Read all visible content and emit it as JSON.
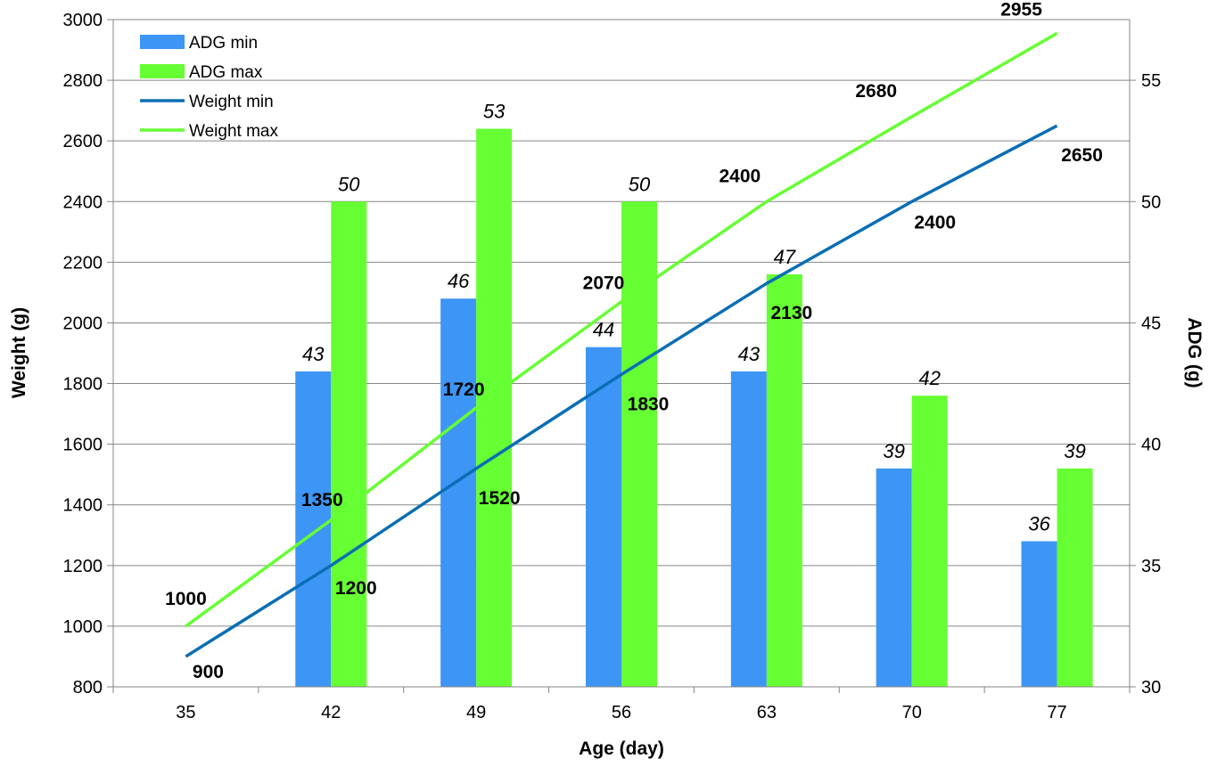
{
  "chart_data": {
    "type": "bar",
    "categories": [
      "35",
      "42",
      "49",
      "56",
      "63",
      "70",
      "77"
    ],
    "xlabel": "Age (day)",
    "ylabel": "Weight (g)",
    "ylabel_right": "ADG (g)",
    "ylim": [
      800,
      3000
    ],
    "ylim_right": [
      30,
      57.5
    ],
    "yticks": [
      "800",
      "1000",
      "1200",
      "1400",
      "1600",
      "1800",
      "2000",
      "2200",
      "2400",
      "2600",
      "2800",
      "3000"
    ],
    "yticks_right": [
      "30",
      "35",
      "40",
      "45",
      "50",
      "55"
    ],
    "grid": true,
    "legend_position": "top-left",
    "bar_series": [
      {
        "name": "ADG min",
        "axis": "right",
        "color": "#3d95f5",
        "values": [
          null,
          43,
          46,
          44,
          43,
          39,
          36
        ],
        "labels": [
          "",
          "43",
          "46",
          "44",
          "43",
          "39",
          "36"
        ]
      },
      {
        "name": "ADG max",
        "axis": "right",
        "color": "#66ff33",
        "values": [
          null,
          50,
          53,
          50,
          47,
          42,
          39
        ],
        "labels": [
          "",
          "50",
          "53",
          "50",
          "47",
          "42",
          "39"
        ]
      }
    ],
    "line_series": [
      {
        "name": "Weight min",
        "axis": "left",
        "color": "#0a6eb4",
        "values": [
          900,
          1200,
          1520,
          1830,
          2130,
          2400,
          2650
        ],
        "labels": [
          "900",
          "1200",
          "1520",
          "1830",
          "2130",
          "2400",
          "2650"
        ]
      },
      {
        "name": "Weight max",
        "axis": "left",
        "color": "#66ff33",
        "values": [
          1000,
          1350,
          1720,
          2070,
          2400,
          2680,
          2955
        ],
        "labels": [
          "1000",
          "1350",
          "1720",
          "2070",
          "2400",
          "2680",
          "2955"
        ]
      }
    ]
  }
}
